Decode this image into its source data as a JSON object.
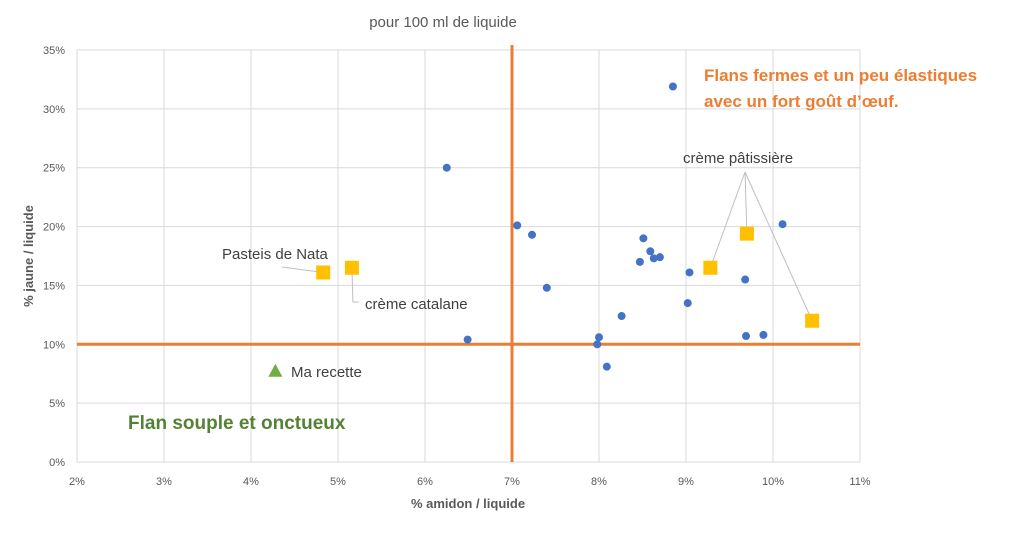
{
  "chart_data": {
    "type": "scatter",
    "title": "pour 100 ml de liquide",
    "xlabel": "% amidon / liquide",
    "ylabel": "% jaune / liquide",
    "xlim": [
      2,
      11
    ],
    "ylim": [
      0,
      35
    ],
    "x_ticks": [
      "2%",
      "3%",
      "4%",
      "5%",
      "6%",
      "7%",
      "8%",
      "9%",
      "10%",
      "11%"
    ],
    "y_ticks": [
      "0%",
      "5%",
      "10%",
      "15%",
      "20%",
      "25%",
      "30%",
      "35%"
    ],
    "grid": true,
    "legend": "none",
    "series": [
      {
        "marker": "circle",
        "color": "#4472C4",
        "points": [
          [
            8.85,
            31.9
          ],
          [
            6.25,
            25.0
          ],
          [
            7.06,
            20.1
          ],
          [
            7.23,
            19.3
          ],
          [
            7.4,
            14.8
          ],
          [
            6.49,
            10.4
          ],
          [
            8.0,
            10.6
          ],
          [
            7.98,
            10.0
          ],
          [
            8.09,
            8.1
          ],
          [
            8.26,
            12.4
          ],
          [
            8.51,
            19.0
          ],
          [
            8.59,
            17.9
          ],
          [
            8.63,
            17.3
          ],
          [
            8.7,
            17.4
          ],
          [
            8.47,
            17.0
          ],
          [
            9.04,
            16.1
          ],
          [
            9.02,
            13.5
          ],
          [
            9.68,
            15.5
          ],
          [
            9.69,
            10.7
          ],
          [
            9.89,
            10.8
          ],
          [
            10.11,
            20.2
          ]
        ]
      },
      {
        "marker": "square",
        "color": "#FFC000",
        "points": [
          {
            "x": 4.83,
            "y": 16.1,
            "label": "Pasteis de Nata"
          },
          {
            "x": 5.16,
            "y": 16.5,
            "label": "crème catalane"
          },
          {
            "x": 9.28,
            "y": 16.5,
            "label": "crème pâtissière"
          },
          {
            "x": 9.7,
            "y": 19.4,
            "label": "crème pâtissière"
          },
          {
            "x": 10.45,
            "y": 12.0,
            "label": "crème pâtissière"
          }
        ]
      },
      {
        "marker": "triangle",
        "color": "#70AD47",
        "points": [
          {
            "x": 4.28,
            "y": 7.75,
            "label": "Ma recette"
          }
        ]
      }
    ],
    "reference_lines": {
      "color": "#ED7D31",
      "x": 7,
      "y": 10
    },
    "annotations": {
      "pasteis": "Pasteis de Nata",
      "catalane": "crème catalane",
      "patissiere": "crème pâtissière",
      "ma_recette": "Ma recette",
      "firm_line1": "Flans fermes et un peu élastiques",
      "firm_line2": "avec un fort goût d’œuf.",
      "firm_color": "#ED7D31",
      "soft": "Flan souple et onctueux",
      "soft_color": "#548235"
    }
  }
}
